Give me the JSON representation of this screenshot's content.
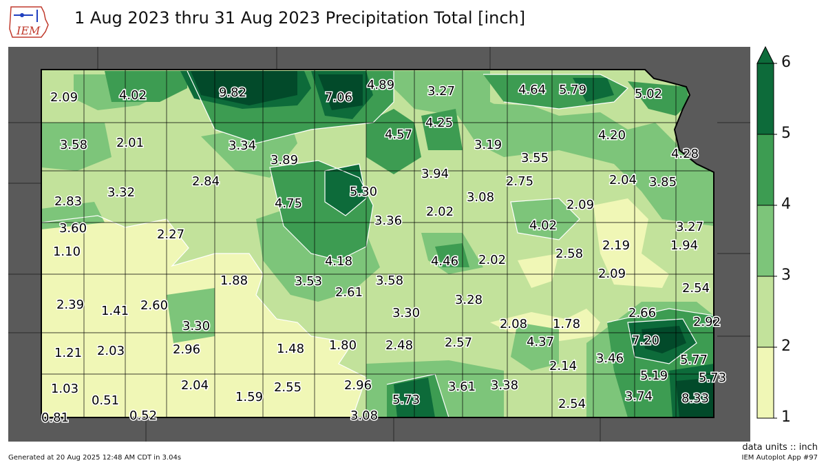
{
  "title": "1 Aug 2023 thru 31 Aug 2023 Precipitation Total [inch]",
  "logo_text": "IEM",
  "units_label": "data units :: inch",
  "generated": "Generated at 20 Aug 2025 12:48 AM CDT in 3.04s",
  "app_name": "IEM Autoplot App #97",
  "colorbar": {
    "ticks": [
      "1",
      "2",
      "3",
      "4",
      "5",
      "6"
    ],
    "bins": [
      {
        "min": 1,
        "max": 2,
        "color": "#f0f7b6"
      },
      {
        "min": 2,
        "max": 3,
        "color": "#c2e29b"
      },
      {
        "min": 3,
        "max": 4,
        "color": "#7dc57a"
      },
      {
        "min": 4,
        "max": 5,
        "color": "#3d9c52"
      },
      {
        "min": 5,
        "max": 6,
        "color": "#0d6b3a"
      }
    ],
    "over_color": "#024a2a"
  },
  "colors": {
    "outside_state": "#5a5a5a",
    "county_lines": "#000000",
    "contour_lines": "#ffffff"
  },
  "values": [
    "2.09",
    "4.02",
    "9.82",
    "7.06",
    "4.89",
    "3.27",
    "4.64",
    "5.79",
    "5.02",
    "3.58",
    "2.01",
    "3.34",
    "3.89",
    "4.57",
    "4.25",
    "3.19",
    "4.20",
    "4.28",
    "3.55",
    "2.84",
    "5.30",
    "3.94",
    "2.75",
    "2.04",
    "3.85",
    "2.83",
    "3.32",
    "4.75",
    "3.08",
    "2.09",
    "3.60",
    "2.27",
    "3.36",
    "2.02",
    "4.02",
    "3.27",
    "1.10",
    "4.18",
    "4.46",
    "2.02",
    "2.58",
    "2.19",
    "1.94",
    "1.88",
    "3.53",
    "3.58",
    "2.09",
    "2.39",
    "2.61",
    "3.28",
    "2.54",
    "1.41",
    "2.60",
    "3.30",
    "2.66",
    "3.30",
    "2.08",
    "1.78",
    "2.92",
    "1.21",
    "2.03",
    "2.96",
    "1.48",
    "1.80",
    "2.48",
    "2.57",
    "4.37",
    "7.20",
    "5.77",
    "3.46",
    "2.14",
    "5.19",
    "5.73",
    "1.03",
    "2.04",
    "2.55",
    "2.96",
    "3.61",
    "3.38",
    "0.51",
    "1.59",
    "5.73",
    "3.74",
    "8.33",
    "2.54",
    "0.81",
    "0.52",
    "3.08"
  ]
}
